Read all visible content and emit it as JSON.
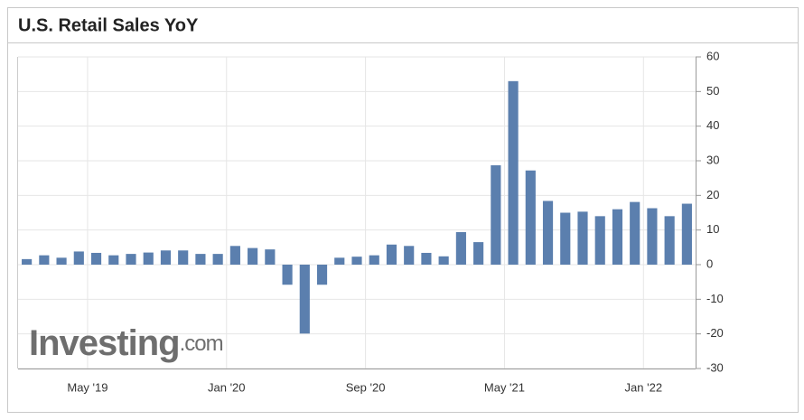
{
  "chart_data": {
    "type": "bar",
    "title": "U.S. Retail Sales YoY",
    "watermark": "Investing",
    "watermark_suffix": ".com",
    "categories": [
      null,
      null,
      null,
      null,
      "May '19",
      null,
      null,
      null,
      null,
      null,
      null,
      null,
      "Jan '20",
      null,
      null,
      null,
      null,
      null,
      null,
      null,
      "Sep '20",
      null,
      null,
      null,
      null,
      null,
      null,
      null,
      "May '21",
      null,
      null,
      null,
      null,
      null,
      null,
      null,
      "Jan '22",
      null,
      null
    ],
    "values": [
      1.6,
      2.7,
      2.0,
      3.8,
      3.4,
      2.7,
      3.1,
      3.5,
      4.1,
      4.1,
      3.1,
      3.1,
      5.4,
      4.8,
      4.4,
      -5.8,
      -19.9,
      -5.8,
      2.0,
      2.3,
      2.7,
      5.8,
      5.4,
      3.4,
      2.4,
      9.4,
      6.5,
      28.7,
      53.0,
      27.2,
      18.4,
      15.0,
      15.3,
      14.0,
      16.0,
      18.1,
      16.3,
      14.0,
      17.6
    ],
    "color": "#5b7fae",
    "ylim": [
      -30,
      60
    ],
    "yticks": [
      -30,
      -20,
      -10,
      0,
      10,
      20,
      30,
      40,
      50,
      60
    ],
    "grid": true
  }
}
